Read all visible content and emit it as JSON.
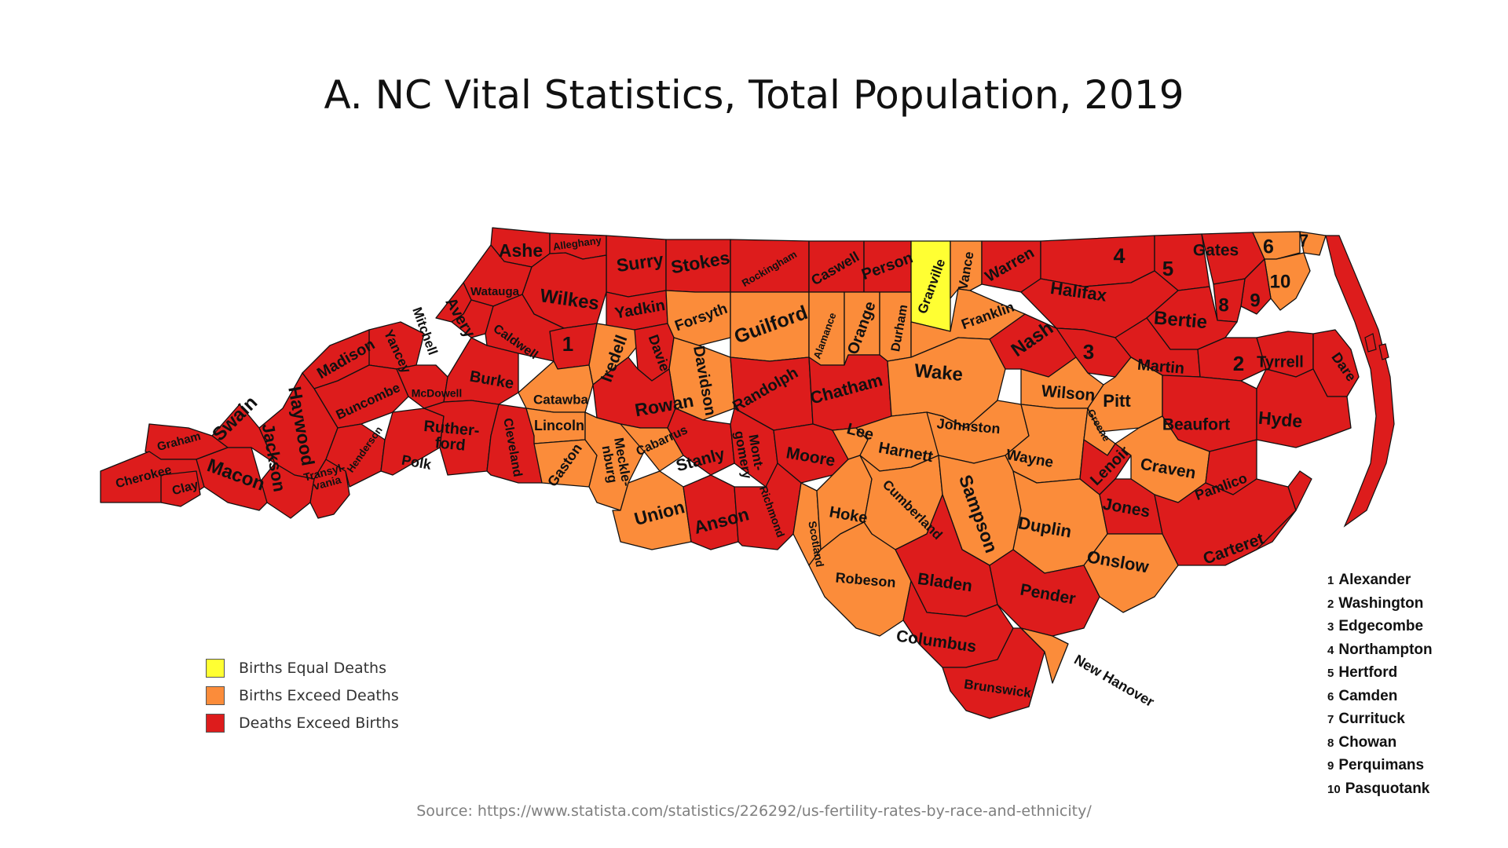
{
  "title": "A. NC Vital Statistics, Total Population, 2019",
  "colors": {
    "equal": "#ffff33",
    "births_exceed": "#fb8c3a",
    "deaths_exceed": "#dd1c1c",
    "border": "#111111",
    "coast": "#dd1c1c"
  },
  "legend": [
    {
      "label": "Births Equal Deaths",
      "category": "equal"
    },
    {
      "label": "Births Exceed Deaths",
      "category": "births_exceed"
    },
    {
      "label": "Deaths Exceed Births",
      "category": "deaths_exceed"
    }
  ],
  "counties": [
    {
      "name": "Ashe",
      "category": "deaths_exceed"
    },
    {
      "name": "Alleghany",
      "category": "deaths_exceed"
    },
    {
      "name": "Surry",
      "category": "deaths_exceed"
    },
    {
      "name": "Stokes",
      "category": "deaths_exceed"
    },
    {
      "name": "Rockingham",
      "category": "deaths_exceed"
    },
    {
      "name": "Caswell",
      "category": "deaths_exceed"
    },
    {
      "name": "Person",
      "category": "deaths_exceed"
    },
    {
      "name": "Granville",
      "category": "equal"
    },
    {
      "name": "Vance",
      "category": "births_exceed"
    },
    {
      "name": "Warren",
      "category": "deaths_exceed"
    },
    {
      "name": "4",
      "category": "deaths_exceed"
    },
    {
      "name": "5",
      "category": "deaths_exceed"
    },
    {
      "name": "Gates",
      "category": "deaths_exceed"
    },
    {
      "name": "6",
      "category": "births_exceed"
    },
    {
      "name": "7",
      "category": "births_exceed"
    },
    {
      "name": "10",
      "category": "births_exceed"
    },
    {
      "name": "9",
      "category": "deaths_exceed"
    },
    {
      "name": "8",
      "category": "deaths_exceed"
    },
    {
      "name": "Watauga",
      "category": "deaths_exceed"
    },
    {
      "name": "Wilkes",
      "category": "deaths_exceed"
    },
    {
      "name": "Yadkin",
      "category": "deaths_exceed"
    },
    {
      "name": "Forsyth",
      "category": "births_exceed"
    },
    {
      "name": "Guilford",
      "category": "births_exceed"
    },
    {
      "name": "Alamance",
      "category": "births_exceed"
    },
    {
      "name": "Orange",
      "category": "births_exceed"
    },
    {
      "name": "Durham",
      "category": "births_exceed"
    },
    {
      "name": "Franklin",
      "category": "births_exceed"
    },
    {
      "name": "Halifax",
      "category": "deaths_exceed"
    },
    {
      "name": "Bertie",
      "category": "deaths_exceed"
    },
    {
      "name": "Mitchell",
      "category": "deaths_exceed"
    },
    {
      "name": "Avery",
      "category": "deaths_exceed"
    },
    {
      "name": "Caldwell",
      "category": "deaths_exceed"
    },
    {
      "name": "1",
      "category": "deaths_exceed"
    },
    {
      "name": "Iredell",
      "category": "births_exceed"
    },
    {
      "name": "Davie",
      "category": "deaths_exceed"
    },
    {
      "name": "Davidson",
      "category": "births_exceed"
    },
    {
      "name": "Randolph",
      "category": "deaths_exceed"
    },
    {
      "name": "Chatham",
      "category": "deaths_exceed"
    },
    {
      "name": "Wake",
      "category": "births_exceed"
    },
    {
      "name": "Nash",
      "category": "deaths_exceed"
    },
    {
      "name": "3",
      "category": "deaths_exceed"
    },
    {
      "name": "Martin",
      "category": "deaths_exceed"
    },
    {
      "name": "2",
      "category": "deaths_exceed"
    },
    {
      "name": "Tyrrell",
      "category": "deaths_exceed"
    },
    {
      "name": "Dare",
      "category": "deaths_exceed"
    },
    {
      "name": "Madison",
      "category": "deaths_exceed"
    },
    {
      "name": "Yancey",
      "category": "deaths_exceed"
    },
    {
      "name": "Buncombe",
      "category": "deaths_exceed"
    },
    {
      "name": "McDowell",
      "category": "deaths_exceed"
    },
    {
      "name": "Burke",
      "category": "deaths_exceed"
    },
    {
      "name": "Catawba",
      "category": "births_exceed"
    },
    {
      "name": "Rowan",
      "category": "deaths_exceed"
    },
    {
      "name": "Wilson",
      "category": "births_exceed"
    },
    {
      "name": "Pitt",
      "category": "births_exceed"
    },
    {
      "name": "Beaufort",
      "category": "deaths_exceed"
    },
    {
      "name": "Hyde",
      "category": "deaths_exceed"
    },
    {
      "name": "Haywood",
      "category": "deaths_exceed"
    },
    {
      "name": "Swain",
      "category": "deaths_exceed"
    },
    {
      "name": "Graham",
      "category": "deaths_exceed"
    },
    {
      "name": "Jackson",
      "category": "deaths_exceed"
    },
    {
      "name": "Transyl-vania",
      "category": "deaths_exceed"
    },
    {
      "name": "Henderson",
      "category": "deaths_exceed"
    },
    {
      "name": "Polk",
      "category": "deaths_exceed"
    },
    {
      "name": "Ruther-ford",
      "category": "deaths_exceed"
    },
    {
      "name": "Cleveland",
      "category": "deaths_exceed"
    },
    {
      "name": "Lincoln",
      "category": "births_exceed"
    },
    {
      "name": "Gaston",
      "category": "births_exceed"
    },
    {
      "name": "Meckle-nburg",
      "category": "births_exceed"
    },
    {
      "name": "Cabarrus",
      "category": "births_exceed"
    },
    {
      "name": "Stanly",
      "category": "deaths_exceed"
    },
    {
      "name": "Mont-gomery",
      "category": "deaths_exceed"
    },
    {
      "name": "Moore",
      "category": "deaths_exceed"
    },
    {
      "name": "Lee",
      "category": "births_exceed"
    },
    {
      "name": "Harnett",
      "category": "births_exceed"
    },
    {
      "name": "Johnston",
      "category": "births_exceed"
    },
    {
      "name": "Wayne",
      "category": "births_exceed"
    },
    {
      "name": "Greene",
      "category": "births_exceed"
    },
    {
      "name": "Lenoir",
      "category": "deaths_exceed"
    },
    {
      "name": "Craven",
      "category": "births_exceed"
    },
    {
      "name": "Pamlico",
      "category": "deaths_exceed"
    },
    {
      "name": "Cherokee",
      "category": "deaths_exceed"
    },
    {
      "name": "Clay",
      "category": "deaths_exceed"
    },
    {
      "name": "Macon",
      "category": "deaths_exceed"
    },
    {
      "name": "Union",
      "category": "births_exceed"
    },
    {
      "name": "Anson",
      "category": "deaths_exceed"
    },
    {
      "name": "Richmond",
      "category": "deaths_exceed"
    },
    {
      "name": "Scotland",
      "category": "births_exceed"
    },
    {
      "name": "Hoke",
      "category": "births_exceed"
    },
    {
      "name": "Cumberland",
      "category": "births_exceed"
    },
    {
      "name": "Sampson",
      "category": "births_exceed"
    },
    {
      "name": "Duplin",
      "category": "births_exceed"
    },
    {
      "name": "Jones",
      "category": "deaths_exceed"
    },
    {
      "name": "Onslow",
      "category": "births_exceed"
    },
    {
      "name": "Carteret",
      "category": "deaths_exceed"
    },
    {
      "name": "Robeson",
      "category": "births_exceed"
    },
    {
      "name": "Bladen",
      "category": "deaths_exceed"
    },
    {
      "name": "Pender",
      "category": "deaths_exceed"
    },
    {
      "name": "Columbus",
      "category": "deaths_exceed"
    },
    {
      "name": "Brunswick",
      "category": "deaths_exceed"
    },
    {
      "name": "New Hanover",
      "category": "births_exceed"
    }
  ],
  "key": [
    {
      "num": "1",
      "name": "Alexander"
    },
    {
      "num": "2",
      "name": "Washington"
    },
    {
      "num": "3",
      "name": "Edgecombe"
    },
    {
      "num": "4",
      "name": "Northampton"
    },
    {
      "num": "5",
      "name": "Hertford"
    },
    {
      "num": "6",
      "name": "Camden"
    },
    {
      "num": "7",
      "name": "Currituck"
    },
    {
      "num": "8",
      "name": "Chowan"
    },
    {
      "num": "9",
      "name": "Perquimans"
    },
    {
      "num": "10",
      "name": "Pasquotank"
    }
  ],
  "source": "Source: https://www.statista.com/statistics/226292/us-fertility-rates-by-race-and-ethnicity/"
}
